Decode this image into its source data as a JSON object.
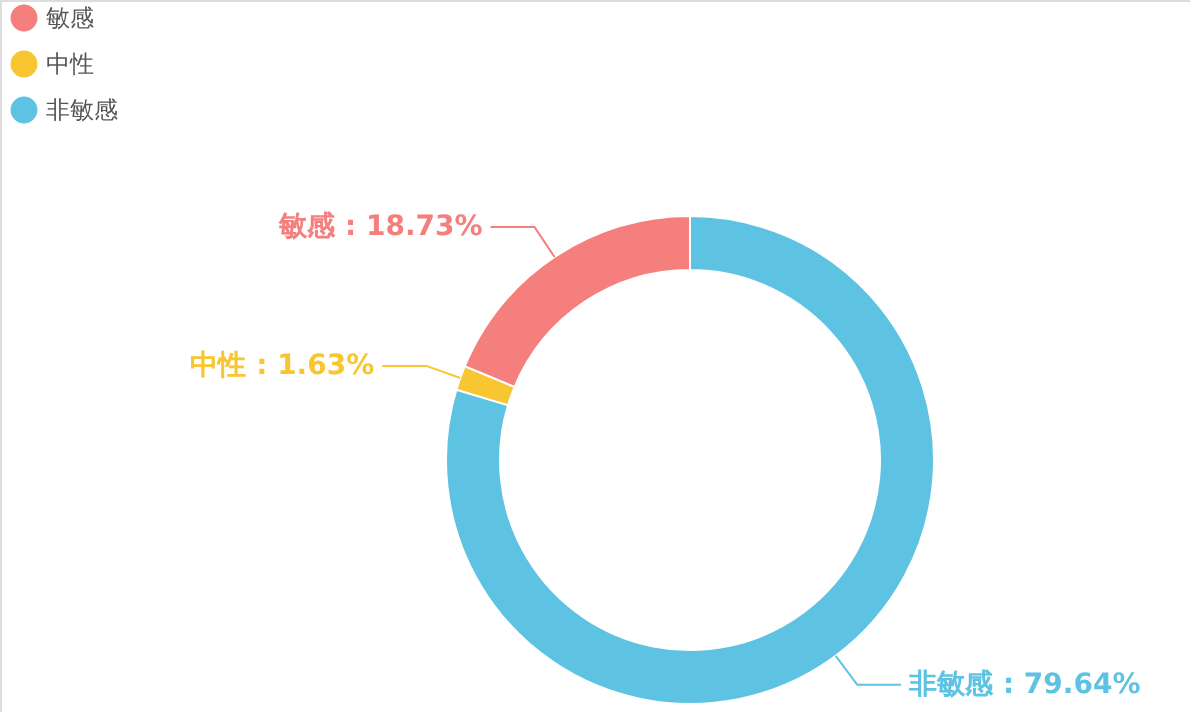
{
  "chart_data": {
    "type": "donut",
    "categories": [
      "敏感",
      "中性",
      "非敏感"
    ],
    "values": [
      18.73,
      1.63,
      79.64
    ],
    "colors": [
      "#f47f7d",
      "#f8c630",
      "#5ec3e3"
    ],
    "value_labels": [
      "敏感 : 18.73%",
      "中性 : 1.63%",
      "非敏感 : 79.64%"
    ],
    "legend": "top left"
  }
}
